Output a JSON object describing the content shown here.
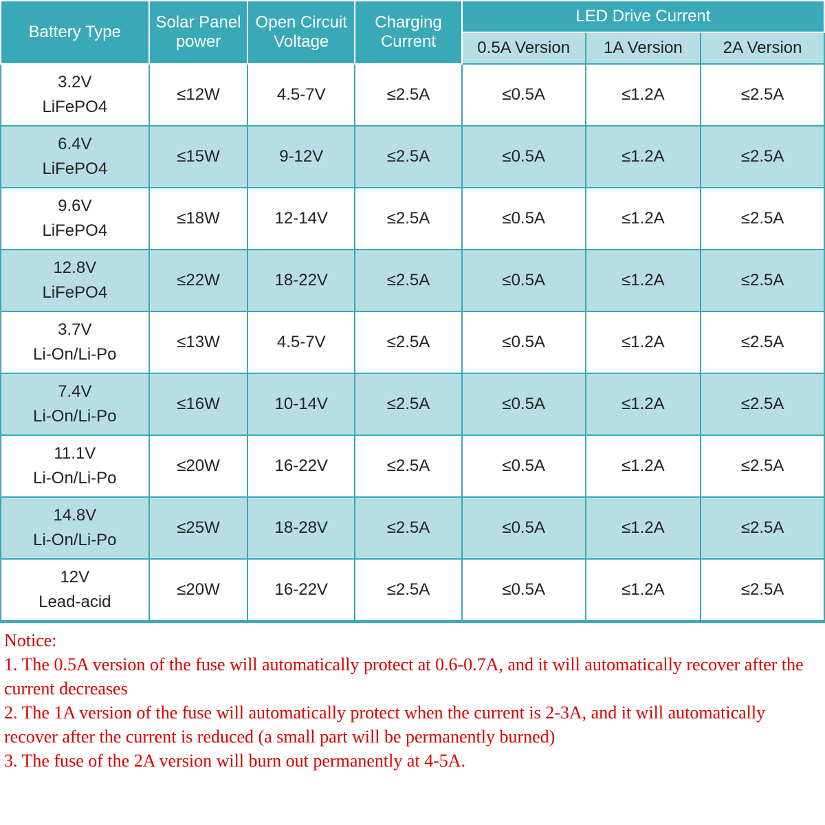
{
  "table": {
    "header": {
      "battery": "Battery Type",
      "solar": "Solar Panel power",
      "voc": "Open Circuit Voltage",
      "charge": "Charging Current",
      "led_group": "LED Drive Current",
      "led_05": "0.5A Version",
      "led_1": "1A Version",
      "led_2": "2A Version"
    },
    "rows": [
      {
        "v": "3.2V",
        "chem": "LiFePO4",
        "solar": "≤12W",
        "voc": "4.5-7V",
        "charge": "≤2.5A",
        "led05": "≤0.5A",
        "led1": "≤1.2A",
        "led2": "≤2.5A"
      },
      {
        "v": "6.4V",
        "chem": "LiFePO4",
        "solar": "≤15W",
        "voc": "9-12V",
        "charge": "≤2.5A",
        "led05": "≤0.5A",
        "led1": "≤1.2A",
        "led2": "≤2.5A"
      },
      {
        "v": "9.6V",
        "chem": "LiFePO4",
        "solar": "≤18W",
        "voc": "12-14V",
        "charge": "≤2.5A",
        "led05": "≤0.5A",
        "led1": "≤1.2A",
        "led2": "≤2.5A"
      },
      {
        "v": "12.8V",
        "chem": "LiFePO4",
        "solar": "≤22W",
        "voc": "18-22V",
        "charge": "≤2.5A",
        "led05": "≤0.5A",
        "led1": "≤1.2A",
        "led2": "≤2.5A"
      },
      {
        "v": "3.7V",
        "chem": "Li-On/Li-Po",
        "solar": "≤13W",
        "voc": "4.5-7V",
        "charge": "≤2.5A",
        "led05": "≤0.5A",
        "led1": "≤1.2A",
        "led2": "≤2.5A"
      },
      {
        "v": "7.4V",
        "chem": "Li-On/Li-Po",
        "solar": "≤16W",
        "voc": "10-14V",
        "charge": "≤2.5A",
        "led05": "≤0.5A",
        "led1": "≤1.2A",
        "led2": "≤2.5A"
      },
      {
        "v": "11.1V",
        "chem": "Li-On/Li-Po",
        "solar": "≤20W",
        "voc": "16-22V",
        "charge": "≤2.5A",
        "led05": "≤0.5A",
        "led1": "≤1.2A",
        "led2": "≤2.5A"
      },
      {
        "v": "14.8V",
        "chem": "Li-On/Li-Po",
        "solar": "≤25W",
        "voc": "18-28V",
        "charge": "≤2.5A",
        "led05": "≤0.5A",
        "led1": "≤1.2A",
        "led2": "≤2.5A"
      },
      {
        "v": "12V",
        "chem": "Lead-acid",
        "solar": "≤20W",
        "voc": "16-22V",
        "charge": "≤2.5A",
        "led05": "≤0.5A",
        "led1": "≤1.2A",
        "led2": "≤2.5A"
      }
    ],
    "colors": {
      "header_bg": "#3aa9b7",
      "header_fg": "#ffffff",
      "subhead_bg": "#b8dee5",
      "border": "#3aa9b7",
      "row_alt_bg": "#b8dee5",
      "row_bg": "#ffffff",
      "notice_color": "#d90000"
    },
    "col_widths_pct": [
      18,
      12,
      13,
      13,
      15,
      14,
      15
    ],
    "font_size_pt": 18
  },
  "notice": {
    "title": "Notice:",
    "lines": [
      "1. The 0.5A version of the fuse will automatically protect at 0.6-0.7A, and it will automatically recover after the current decreases",
      "2. The 1A version of the fuse will automatically protect when the current is 2-3A, and it will automatically recover after the current is reduced (a small part will be permanently burned)",
      "3. The fuse of the 2A version will burn out permanently at 4-5A."
    ]
  }
}
